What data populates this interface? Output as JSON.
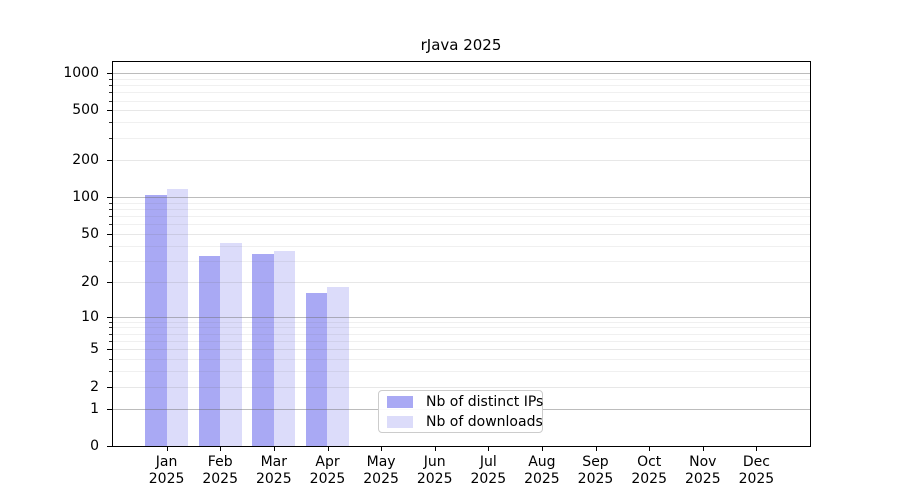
{
  "chart_data": {
    "type": "bar",
    "title": "rJava 2025",
    "categories": [
      "Jan",
      "Feb",
      "Mar",
      "Apr",
      "May",
      "Jun",
      "Jul",
      "Aug",
      "Sep",
      "Oct",
      "Nov",
      "Dec"
    ],
    "category_year": "2025",
    "series": [
      {
        "name": "Nb of distinct IPs",
        "color": "#a9a9f4",
        "values": [
          103,
          33,
          34,
          16,
          0,
          0,
          0,
          0,
          0,
          0,
          0,
          0
        ]
      },
      {
        "name": "Nb of downloads",
        "color": "#dcdcfa",
        "values": [
          115,
          42,
          36,
          18,
          0,
          0,
          0,
          0,
          0,
          0,
          0,
          0
        ]
      }
    ],
    "xlabel": "",
    "ylabel": "",
    "yscale": "log1p",
    "yticks": [
      0,
      1,
      2,
      5,
      10,
      20,
      50,
      100,
      200,
      500,
      1000
    ],
    "yticks_minor": [
      3,
      4,
      6,
      7,
      8,
      9,
      30,
      40,
      60,
      70,
      80,
      90,
      300,
      400,
      600,
      700,
      800,
      900
    ],
    "ylim": [
      0,
      1227
    ],
    "grid": "on",
    "legend_position": "lower center",
    "legend": [
      "Nb of distinct IPs",
      "Nb of downloads"
    ]
  }
}
